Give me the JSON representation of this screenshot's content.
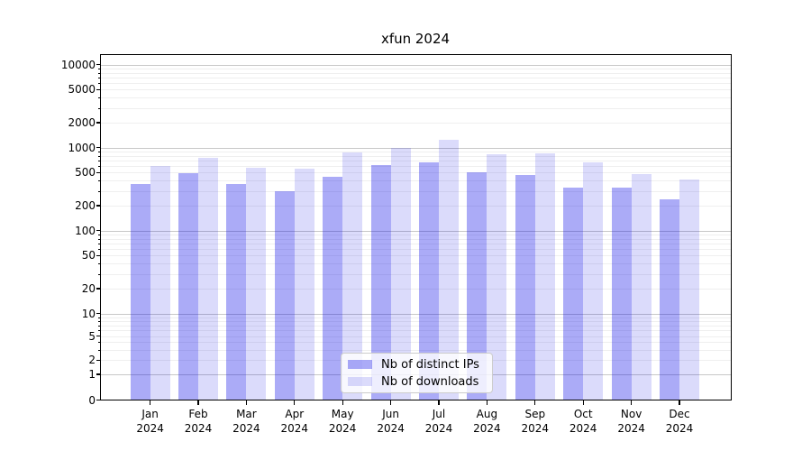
{
  "title": "xfun 2024",
  "year": "2024",
  "months": [
    "Jan",
    "Feb",
    "Mar",
    "Apr",
    "May",
    "Jun",
    "Jul",
    "Aug",
    "Sep",
    "Oct",
    "Nov",
    "Dec"
  ],
  "chart_data": {
    "type": "bar",
    "title": "xfun 2024",
    "yscale": "symlog",
    "grid": "horizontal major+minor",
    "legend_position": "lower center",
    "categories": [
      "Jan 2024",
      "Feb 2024",
      "Mar 2024",
      "Apr 2024",
      "May 2024",
      "Jun 2024",
      "Jul 2024",
      "Aug 2024",
      "Sep 2024",
      "Oct 2024",
      "Nov 2024",
      "Dec 2024"
    ],
    "series": [
      {
        "name": "Nb of distinct IPs",
        "values": [
          365,
          495,
          365,
          300,
          450,
          610,
          660,
          505,
          470,
          330,
          330,
          240
        ]
      },
      {
        "name": "Nb of downloads",
        "values": [
          600,
          760,
          570,
          560,
          880,
          1005,
          1240,
          840,
          860,
          660,
          485,
          410
        ]
      }
    ],
    "ytick_labels": [
      "0",
      "1",
      "2",
      "5",
      "10",
      "20",
      "50",
      "100",
      "200",
      "500",
      "1000",
      "2000",
      "5000",
      "10000"
    ],
    "ytick_values": [
      0,
      1,
      2,
      5,
      10,
      20,
      50,
      100,
      200,
      500,
      1000,
      2000,
      5000,
      10000
    ],
    "ylim": [
      0,
      13000
    ]
  },
  "legend": {
    "items": [
      {
        "label": "Nb of distinct IPs"
      },
      {
        "label": "Nb of downloads"
      }
    ]
  },
  "colors": {
    "bar_distinct_ips": "rgba(0,0,230,0.33)",
    "bar_downloads": "rgba(0,0,230,0.14)",
    "bar_distinct_ips_hex": "#ababf7",
    "bar_downloads_hex": "#dcdcfa",
    "grid_major": "#c8c8c8",
    "grid_minor": "#efefef",
    "spine": "#000000",
    "text": "#000000"
  }
}
